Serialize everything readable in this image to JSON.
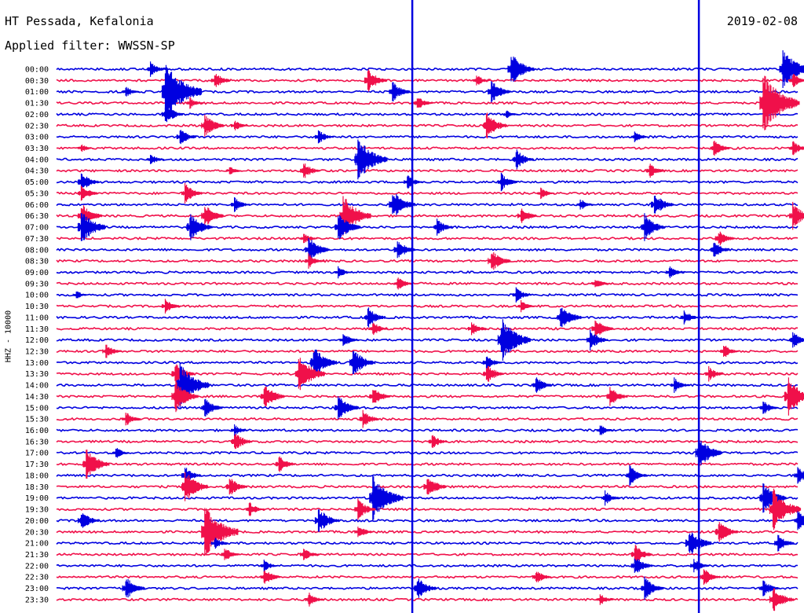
{
  "header": {
    "station": "HT Pessada, Kefalonia",
    "filter": "Applied filter: WWSSN-SP",
    "date": "2019-02-08"
  },
  "chart_data": {
    "type": "line",
    "title": "HT Pessada, Kefalonia",
    "subtitle": "Applied filter: WWSSN-SP",
    "date": "2019-02-08",
    "ylabel": "HHZ - 10000",
    "xlabel": "",
    "row_labels": [
      "00:00",
      "00:30",
      "01:00",
      "01:30",
      "02:00",
      "02:30",
      "03:00",
      "03:30",
      "04:00",
      "04:30",
      "05:00",
      "05:30",
      "06:00",
      "06:30",
      "07:00",
      "07:30",
      "08:00",
      "08:30",
      "09:00",
      "09:30",
      "10:00",
      "10:30",
      "11:00",
      "11:30",
      "12:00",
      "12:30",
      "13:00",
      "13:30",
      "14:00",
      "14:30",
      "15:00",
      "15:30",
      "16:00",
      "16:30",
      "17:00",
      "17:30",
      "18:00",
      "18:30",
      "19:00",
      "19:30",
      "20:00",
      "20:30",
      "21:00",
      "21:30",
      "22:00",
      "22:30",
      "23:00",
      "23:30"
    ],
    "x_range_minutes": [
      0,
      15
    ],
    "colors": [
      "#0000e0",
      "#f0104a"
    ],
    "grid": false,
    "events_minute_amplitude": [
      [
        [
          9.2,
          22
        ],
        [
          1.9,
          10
        ],
        [
          14.7,
          28
        ]
      ],
      [
        [
          3.2,
          12
        ],
        [
          6.3,
          16
        ],
        [
          8.5,
          8
        ],
        [
          14.9,
          10
        ]
      ],
      [
        [
          2.2,
          40
        ],
        [
          8.8,
          16
        ],
        [
          6.8,
          14
        ],
        [
          1.4,
          8
        ]
      ],
      [
        [
          14.3,
          40
        ],
        [
          7.3,
          10
        ],
        [
          2.7,
          8
        ]
      ],
      [
        [
          2.2,
          14
        ],
        [
          9.1,
          6
        ]
      ],
      [
        [
          3.0,
          16
        ],
        [
          8.7,
          18
        ],
        [
          3.6,
          8
        ]
      ],
      [
        [
          2.5,
          12
        ],
        [
          5.3,
          10
        ],
        [
          11.7,
          8
        ]
      ],
      [
        [
          14.9,
          10
        ],
        [
          13.3,
          12
        ],
        [
          0.5,
          6
        ]
      ],
      [
        [
          6.1,
          30
        ],
        [
          9.3,
          14
        ],
        [
          1.9,
          8
        ]
      ],
      [
        [
          5.0,
          12
        ],
        [
          12.0,
          10
        ],
        [
          3.5,
          6
        ]
      ],
      [
        [
          0.5,
          14
        ],
        [
          7.1,
          10
        ],
        [
          9.0,
          12
        ]
      ],
      [
        [
          0.5,
          12
        ],
        [
          2.6,
          14
        ],
        [
          9.8,
          8
        ]
      ],
      [
        [
          3.6,
          10
        ],
        [
          6.8,
          20
        ],
        [
          12.1,
          16
        ],
        [
          10.6,
          8
        ]
      ],
      [
        [
          0.5,
          18
        ],
        [
          3.0,
          16
        ],
        [
          5.8,
          28
        ],
        [
          9.4,
          12
        ],
        [
          14.9,
          18
        ]
      ],
      [
        [
          0.5,
          24
        ],
        [
          2.7,
          20
        ],
        [
          5.7,
          20
        ],
        [
          7.7,
          12
        ],
        [
          11.9,
          18
        ]
      ],
      [
        [
          13.4,
          12
        ],
        [
          5.0,
          8
        ]
      ],
      [
        [
          5.1,
          18
        ],
        [
          6.9,
          14
        ],
        [
          13.3,
          12
        ]
      ],
      [
        [
          5.1,
          10
        ],
        [
          8.8,
          16
        ]
      ],
      [
        [
          12.4,
          10
        ],
        [
          5.7,
          8
        ]
      ],
      [
        [
          6.9,
          10
        ],
        [
          10.9,
          8
        ]
      ],
      [
        [
          9.3,
          10
        ],
        [
          0.4,
          6
        ]
      ],
      [
        [
          2.2,
          10
        ],
        [
          9.4,
          8
        ]
      ],
      [
        [
          10.2,
          18
        ],
        [
          6.3,
          14
        ],
        [
          12.7,
          10
        ]
      ],
      [
        [
          10.9,
          14
        ],
        [
          8.4,
          10
        ],
        [
          6.4,
          10
        ]
      ],
      [
        [
          9.0,
          30
        ],
        [
          10.8,
          14
        ],
        [
          14.9,
          12
        ],
        [
          5.8,
          10
        ]
      ],
      [
        [
          1.0,
          10
        ],
        [
          13.5,
          10
        ]
      ],
      [
        [
          5.2,
          22
        ],
        [
          6.0,
          20
        ],
        [
          8.7,
          10
        ]
      ],
      [
        [
          2.4,
          16
        ],
        [
          4.9,
          26
        ],
        [
          8.7,
          14
        ],
        [
          13.2,
          10
        ]
      ],
      [
        [
          2.5,
          30
        ],
        [
          9.7,
          12
        ],
        [
          12.5,
          10
        ]
      ],
      [
        [
          2.4,
          22
        ],
        [
          4.2,
          18
        ],
        [
          6.4,
          14
        ],
        [
          11.2,
          14
        ],
        [
          14.8,
          26
        ]
      ],
      [
        [
          3.0,
          14
        ],
        [
          5.7,
          18
        ],
        [
          14.3,
          10
        ]
      ],
      [
        [
          1.4,
          10
        ],
        [
          6.2,
          12
        ]
      ],
      [
        [
          11.0,
          8
        ],
        [
          3.6,
          8
        ]
      ],
      [
        [
          3.6,
          14
        ],
        [
          7.6,
          10
        ]
      ],
      [
        [
          13.0,
          22
        ],
        [
          1.2,
          8
        ]
      ],
      [
        [
          0.6,
          22
        ],
        [
          4.5,
          12
        ]
      ],
      [
        [
          2.6,
          12
        ],
        [
          11.6,
          14
        ],
        [
          15.0,
          12
        ]
      ],
      [
        [
          2.6,
          22
        ],
        [
          7.5,
          16
        ],
        [
          3.5,
          14
        ]
      ],
      [
        [
          6.4,
          32
        ],
        [
          11.1,
          10
        ],
        [
          14.3,
          22
        ]
      ],
      [
        [
          6.1,
          14
        ],
        [
          3.9,
          10
        ],
        [
          14.5,
          28
        ]
      ],
      [
        [
          0.5,
          14
        ],
        [
          5.3,
          18
        ],
        [
          15.0,
          14
        ]
      ],
      [
        [
          3.0,
          36
        ],
        [
          6.1,
          10
        ],
        [
          13.4,
          16
        ]
      ],
      [
        [
          12.8,
          20
        ],
        [
          14.6,
          12
        ],
        [
          3.2,
          8
        ]
      ],
      [
        [
          3.4,
          10
        ],
        [
          11.7,
          14
        ],
        [
          5.0,
          10
        ]
      ],
      [
        [
          11.7,
          14
        ],
        [
          4.2,
          8
        ],
        [
          12.9,
          10
        ]
      ],
      [
        [
          4.2,
          12
        ],
        [
          9.7,
          10
        ],
        [
          13.1,
          12
        ]
      ],
      [
        [
          1.4,
          16
        ],
        [
          7.3,
          16
        ],
        [
          11.9,
          16
        ],
        [
          14.3,
          12
        ]
      ],
      [
        [
          5.1,
          10
        ],
        [
          11.0,
          8
        ],
        [
          14.5,
          18
        ]
      ]
    ],
    "large_event_minutes": [
      7.2,
      13.0
    ]
  }
}
